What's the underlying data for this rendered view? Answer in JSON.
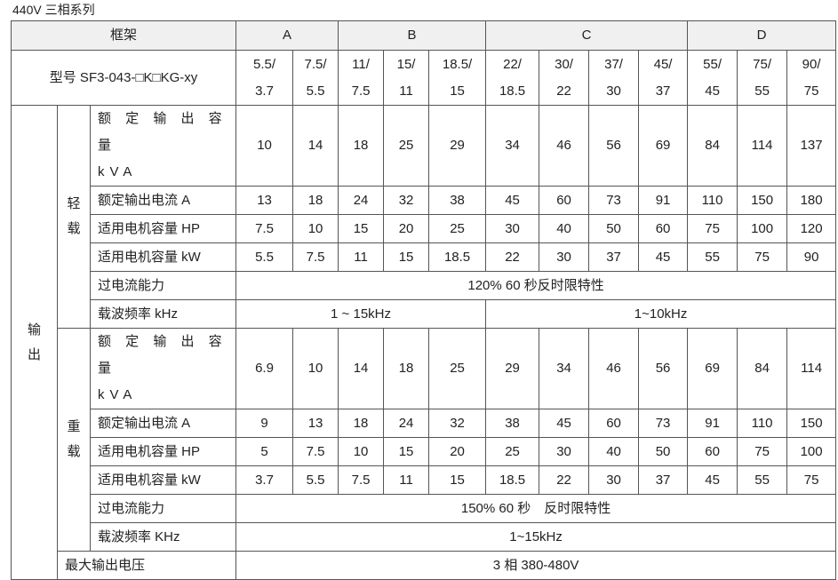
{
  "caption": "440V 三相系列",
  "header": {
    "frame_label": "框架",
    "frames": [
      {
        "name": "A",
        "span": 2
      },
      {
        "name": "B",
        "span": 3
      },
      {
        "name": "C",
        "span": 4
      },
      {
        "name": "D",
        "span": 3
      }
    ]
  },
  "model": {
    "label": "型号 SF3-043-□K□KG-xy",
    "values": [
      [
        "5.5/",
        "3.7"
      ],
      [
        "7.5/",
        "5.5"
      ],
      [
        "11/",
        "7.5"
      ],
      [
        "15/",
        "11"
      ],
      [
        "18.5/",
        "15"
      ],
      [
        "22/",
        "18.5"
      ],
      [
        "30/",
        "22"
      ],
      [
        "37/",
        "30"
      ],
      [
        "45/",
        "37"
      ],
      [
        "55/",
        "45"
      ],
      [
        "75/",
        "55"
      ],
      [
        "90/",
        "75"
      ]
    ]
  },
  "output_label": [
    "输",
    "出"
  ],
  "light": {
    "label": [
      "轻",
      "载"
    ],
    "rows": [
      {
        "label": [
          "额 定 输 出 容 量",
          "kVA"
        ],
        "values": [
          "10",
          "14",
          "18",
          "25",
          "29",
          "34",
          "46",
          "56",
          "69",
          "84",
          "114",
          "137"
        ]
      },
      {
        "label": [
          "额定输出电流 A"
        ],
        "values": [
          "13",
          "18",
          "24",
          "32",
          "38",
          "45",
          "60",
          "73",
          "91",
          "110",
          "150",
          "180"
        ]
      },
      {
        "label": [
          "适用电机容量 HP"
        ],
        "values": [
          "7.5",
          "10",
          "15",
          "20",
          "25",
          "30",
          "40",
          "50",
          "60",
          "75",
          "100",
          "120"
        ]
      },
      {
        "label": [
          "适用电机容量 kW"
        ],
        "values": [
          "5.5",
          "7.5",
          "11",
          "15",
          "18.5",
          "22",
          "30",
          "37",
          "45",
          "55",
          "75",
          "90"
        ]
      }
    ],
    "overcurrent_label": "过电流能力",
    "overcurrent": "120% 60 秒反时限特性",
    "carrier_label": "载波频率 kHz",
    "carrier": [
      {
        "text": "1 ~ 15kHz",
        "span": 5
      },
      {
        "text": "1~10kHz",
        "span": 7
      }
    ]
  },
  "heavy": {
    "label": [
      "重",
      "载"
    ],
    "rows": [
      {
        "label": [
          "额 定 输 出 容 量",
          "kVA"
        ],
        "values": [
          "6.9",
          "10",
          "14",
          "18",
          "25",
          "29",
          "34",
          "46",
          "56",
          "69",
          "84",
          "114"
        ]
      },
      {
        "label": [
          "额定输出电流 A"
        ],
        "values": [
          "9",
          "13",
          "18",
          "24",
          "32",
          "38",
          "45",
          "60",
          "73",
          "91",
          "110",
          "150"
        ]
      },
      {
        "label": [
          "适用电机容量 HP"
        ],
        "values": [
          "5",
          "7.5",
          "10",
          "15",
          "20",
          "25",
          "30",
          "40",
          "50",
          "60",
          "75",
          "100"
        ]
      },
      {
        "label": [
          "适用电机容量 kW"
        ],
        "values": [
          "3.7",
          "5.5",
          "7.5",
          "11",
          "15",
          "18.5",
          "22",
          "30",
          "37",
          "45",
          "55",
          "75"
        ]
      }
    ],
    "overcurrent_label": "过电流能力",
    "overcurrent": "150% 60 秒　反时限特性",
    "carrier_label": "载波频率 KHz",
    "carrier": [
      {
        "text": "1~15kHz",
        "span": 12
      }
    ]
  },
  "max_voltage": {
    "label": "最大输出电压",
    "value": "3 相 380-480V"
  }
}
